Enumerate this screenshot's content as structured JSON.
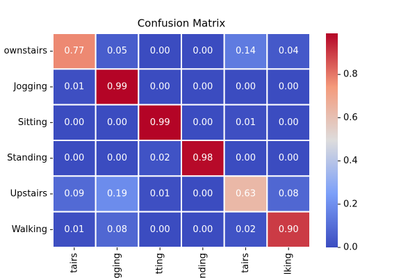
{
  "chart_data": {
    "type": "heatmap",
    "title": "Confusion Matrix",
    "x_categories": [
      "tairs",
      "gging",
      "tting",
      "nding",
      "tairs",
      "lking"
    ],
    "y_categories": [
      "ownstairs",
      "Jogging",
      "Sitting",
      "Standing",
      "Upstairs",
      "Walking"
    ],
    "values": [
      [
        0.77,
        0.05,
        0.0,
        0.0,
        0.14,
        0.04
      ],
      [
        0.01,
        0.99,
        0.0,
        0.0,
        0.0,
        0.0
      ],
      [
        0.0,
        0.0,
        0.99,
        0.0,
        0.01,
        0.0
      ],
      [
        0.0,
        0.0,
        0.02,
        0.98,
        0.0,
        0.0
      ],
      [
        0.09,
        0.19,
        0.01,
        0.0,
        0.63,
        0.08
      ],
      [
        0.01,
        0.08,
        0.0,
        0.0,
        0.02,
        0.9
      ]
    ],
    "value_labels": [
      [
        "0.77",
        "0.05",
        "0.00",
        "0.00",
        "0.14",
        "0.04"
      ],
      [
        "0.01",
        "0.99",
        "0.00",
        "0.00",
        "0.00",
        "0.00"
      ],
      [
        "0.00",
        "0.00",
        "0.99",
        "0.00",
        "0.01",
        "0.00"
      ],
      [
        "0.00",
        "0.00",
        "0.02",
        "0.98",
        "0.00",
        "0.00"
      ],
      [
        "0.09",
        "0.19",
        "0.01",
        "0.00",
        "0.63",
        "0.08"
      ],
      [
        "0.01",
        "0.08",
        "0.00",
        "0.00",
        "0.02",
        "0.90"
      ]
    ],
    "colormap": [
      "#3b4cc0",
      "#7b9ff9",
      "#dddcdc",
      "#f49a7b",
      "#b40426"
    ],
    "clim": [
      0,
      0.99
    ],
    "cticks": [
      {
        "value": 0,
        "label": "0.0"
      },
      {
        "value": 0.2,
        "label": "0.2"
      },
      {
        "value": 0.4,
        "label": "0.4"
      },
      {
        "value": 0.6,
        "label": "0.6"
      },
      {
        "value": 0.8,
        "label": "0.8"
      }
    ]
  }
}
